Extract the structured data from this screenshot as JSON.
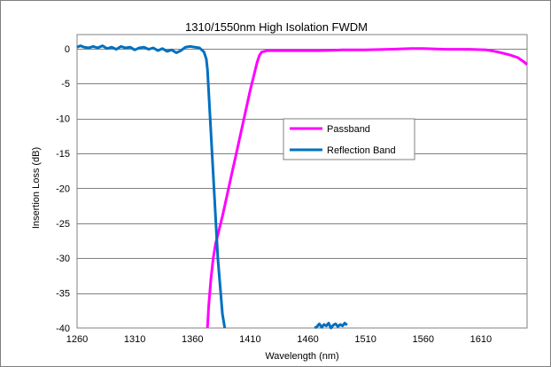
{
  "chart_data": {
    "type": "line",
    "title": "1310/1550nm High Isolation FWDM",
    "xlabel": "Wavelength (nm)",
    "ylabel": "Insertion Loss (dB)",
    "xlim": [
      1260,
      1650
    ],
    "ylim": [
      -40,
      2
    ],
    "x_ticks": [
      "1260",
      "1310",
      "1360",
      "1410",
      "1460",
      "1510",
      "1560",
      "1610"
    ],
    "y_ticks": [
      "0",
      "-5",
      "-10",
      "-15",
      "-20",
      "-25",
      "-30",
      "-35",
      "-40"
    ],
    "grid": "horizontal",
    "legend_position": "center-right",
    "series": [
      {
        "name": "Passband",
        "color": "#ff00ff",
        "x": [
          1373,
          1374,
          1376,
          1378,
          1380,
          1383,
          1386,
          1390,
          1394,
          1398,
          1402,
          1406,
          1410,
          1413,
          1416,
          1418,
          1420,
          1425,
          1430,
          1450,
          1470,
          1490,
          1510,
          1530,
          1550,
          1560,
          1580,
          1600,
          1615,
          1625,
          1635,
          1642,
          1648,
          1650
        ],
        "y": [
          -40,
          -37,
          -33,
          -30,
          -28,
          -26,
          -24,
          -21,
          -18,
          -15,
          -12,
          -9,
          -6,
          -4,
          -2,
          -1,
          -0.5,
          -0.3,
          -0.3,
          -0.3,
          -0.3,
          -0.2,
          -0.2,
          -0.1,
          0,
          0,
          -0.1,
          -0.1,
          -0.2,
          -0.5,
          -0.9,
          -1.3,
          -2,
          -2.3
        ]
      },
      {
        "name": "Reflection Band",
        "color": "#0070c0",
        "x": [
          1260,
          1263,
          1266,
          1270,
          1274,
          1278,
          1282,
          1286,
          1290,
          1294,
          1298,
          1302,
          1306,
          1310,
          1314,
          1318,
          1322,
          1326,
          1330,
          1334,
          1338,
          1342,
          1346,
          1350,
          1354,
          1358,
          1362,
          1366,
          1368,
          1370,
          1372,
          1373,
          1374,
          1375,
          1376,
          1377,
          1378,
          1379,
          1380,
          1381,
          1382,
          1383,
          1384,
          1385,
          1386,
          1387,
          1388
        ],
        "y": [
          0.2,
          0.4,
          0.2,
          0.1,
          0.3,
          0.1,
          0.4,
          0,
          0.2,
          -0.1,
          0.3,
          0.1,
          0.2,
          -0.2,
          0.1,
          0.2,
          -0.1,
          0.1,
          -0.3,
          0,
          -0.4,
          -0.2,
          -0.6,
          -0.3,
          0.2,
          0.3,
          0.2,
          0.1,
          -0.2,
          -0.5,
          -1.5,
          -3,
          -6,
          -9,
          -12,
          -15,
          -18,
          -21,
          -24,
          -27,
          -30,
          -32,
          -34,
          -36,
          -38,
          -39,
          -40
        ]
      },
      {
        "name": "",
        "color": "#0070c0",
        "x": [
          1466,
          1468,
          1470,
          1472,
          1474,
          1476,
          1478,
          1480,
          1482,
          1484,
          1486,
          1488,
          1490,
          1492,
          1494
        ],
        "y": [
          -40,
          -39.8,
          -39.4,
          -39.9,
          -39.5,
          -39.7,
          -39.3,
          -40,
          -39.6,
          -39.4,
          -39.8,
          -39.5,
          -39.7,
          -39.3,
          -39.6
        ]
      }
    ]
  }
}
